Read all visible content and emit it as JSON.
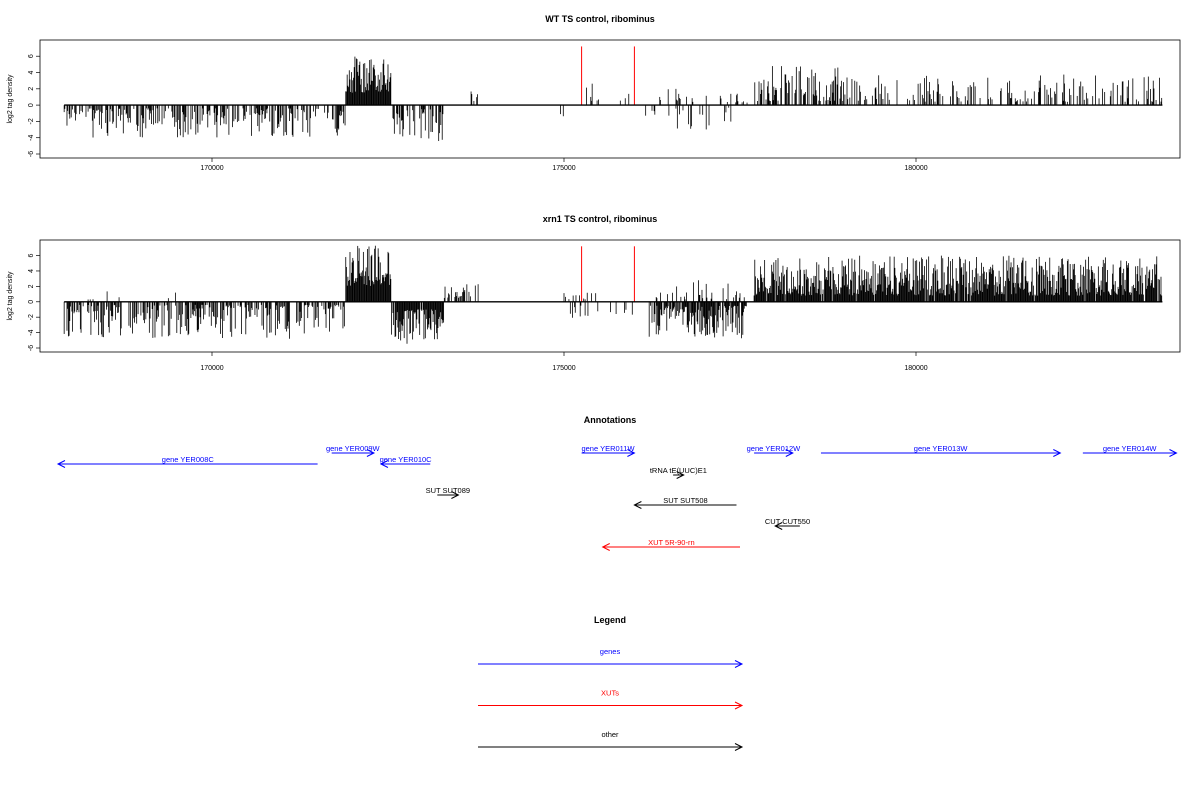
{
  "chart_data": [
    {
      "type": "bar",
      "title": "WT TS control, ribominus",
      "ylabel": "log2 tag density",
      "xlabel": "",
      "xlim": [
        167600,
        183700
      ],
      "ylim": [
        -6,
        7.5
      ],
      "yticks": [
        -6,
        -4,
        -2,
        0,
        2,
        4,
        6
      ],
      "xticks": [
        170000,
        175000,
        180000
      ],
      "series": [
        {
          "color": "#000000",
          "segments": [
            {
              "x0": 167900,
              "x1": 171900,
              "dir": -1,
              "min": 0.4,
              "max": 4.0,
              "density": 0.55
            },
            {
              "x0": 171900,
              "x1": 172550,
              "dir": 1,
              "min": 1.5,
              "max": 6.2,
              "density": 1.0
            },
            {
              "x0": 172550,
              "x1": 173300,
              "dir": -1,
              "min": 0.5,
              "max": 4.5,
              "density": 0.5
            },
            {
              "x0": 173600,
              "x1": 173800,
              "dir": 1,
              "min": 0.5,
              "max": 4.0,
              "density": 0.2
            },
            {
              "x0": 174900,
              "x1": 175000,
              "dir": -1,
              "min": 1.0,
              "max": 1.5,
              "density": 0.2
            },
            {
              "x0": 175300,
              "x1": 175500,
              "dir": 1,
              "min": 0.5,
              "max": 3.0,
              "density": 0.3
            },
            {
              "x0": 175800,
              "x1": 175950,
              "dir": 1,
              "min": 0.5,
              "max": 1.5,
              "density": 0.3
            },
            {
              "x0": 176100,
              "x1": 176300,
              "dir": -1,
              "min": 0.5,
              "max": 2.0,
              "density": 0.2
            },
            {
              "x0": 176300,
              "x1": 177700,
              "dir": 1,
              "min": 0.3,
              "max": 2.0,
              "density": 0.15
            },
            {
              "x0": 176400,
              "x1": 177400,
              "dir": -1,
              "min": 0.3,
              "max": 3.0,
              "density": 0.15
            },
            {
              "x0": 177700,
              "x1": 178900,
              "dir": 1,
              "min": 0.5,
              "max": 4.8,
              "density": 0.55
            },
            {
              "x0": 178900,
              "x1": 183500,
              "dir": 1,
              "min": 0.4,
              "max": 3.8,
              "density": 0.35
            }
          ],
          "seed": 11
        },
        {
          "color": "#ff0000",
          "spikes": [
            {
              "x": 175250,
              "y": 7.2
            },
            {
              "x": 176000,
              "y": 7.2
            }
          ]
        }
      ]
    },
    {
      "type": "bar",
      "title": "xrn1 TS control, ribominus",
      "ylabel": "log2 tag density",
      "xlabel": "",
      "xlim": [
        167600,
        183700
      ],
      "ylim": [
        -6,
        7.5
      ],
      "yticks": [
        -6,
        -4,
        -2,
        0,
        2,
        4,
        6
      ],
      "xticks": [
        170000,
        175000,
        180000
      ],
      "series": [
        {
          "color": "#000000",
          "segments": [
            {
              "x0": 167900,
              "x1": 171900,
              "dir": -1,
              "min": 0.4,
              "max": 4.8,
              "density": 0.6
            },
            {
              "x0": 168000,
              "x1": 169500,
              "dir": 1,
              "min": 0.3,
              "max": 1.5,
              "density": 0.05
            },
            {
              "x0": 171900,
              "x1": 172550,
              "dir": 1,
              "min": 2.0,
              "max": 7.4,
              "density": 1.0
            },
            {
              "x0": 172550,
              "x1": 173300,
              "dir": -1,
              "min": 1.0,
              "max": 5.5,
              "density": 0.9
            },
            {
              "x0": 173300,
              "x1": 173800,
              "dir": 1,
              "min": 0.5,
              "max": 2.5,
              "density": 0.4
            },
            {
              "x0": 175000,
              "x1": 175500,
              "dir": 1,
              "min": 0.3,
              "max": 1.5,
              "density": 0.2
            },
            {
              "x0": 175000,
              "x1": 176000,
              "dir": -1,
              "min": 0.5,
              "max": 2.5,
              "density": 0.15
            },
            {
              "x0": 176200,
              "x1": 177600,
              "dir": -1,
              "min": 0.5,
              "max": 4.8,
              "density": 0.8
            },
            {
              "x0": 176300,
              "x1": 177600,
              "dir": 1,
              "min": 0.3,
              "max": 2.8,
              "density": 0.25
            },
            {
              "x0": 177700,
              "x1": 183500,
              "dir": 1,
              "min": 0.8,
              "max": 6.0,
              "density": 0.95
            }
          ],
          "seed": 29
        },
        {
          "color": "#ff0000",
          "spikes": [
            {
              "x": 175250,
              "y": 7.2
            },
            {
              "x": 176000,
              "y": 7.2
            }
          ]
        }
      ]
    }
  ],
  "annotations": {
    "title": "Annotations",
    "items": [
      {
        "label": "gene YER008C",
        "color": "#0000ff",
        "row": 2,
        "x0": 167500,
        "x1": 171500,
        "dir": "left"
      },
      {
        "label": "gene YER009W",
        "color": "#0000ff",
        "row": 1,
        "x0": 171700,
        "x1": 172300,
        "dir": "right"
      },
      {
        "label": "gene YER010C",
        "color": "#0000ff",
        "row": 2,
        "x0": 172400,
        "x1": 173100,
        "dir": "left"
      },
      {
        "label": "SUT SUT089",
        "color": "#000000",
        "row": 4,
        "x0": 173200,
        "x1": 173500,
        "dir": "right"
      },
      {
        "label": "gene YER011W",
        "color": "#0000ff",
        "row": 1,
        "x0": 175250,
        "x1": 176000,
        "dir": "right"
      },
      {
        "label": "tRNA tE(UUC)E1",
        "color": "#000000",
        "row": 3,
        "x0": 176550,
        "x1": 176700,
        "dir": "right"
      },
      {
        "label": "SUT SUT508",
        "color": "#000000",
        "row": 5,
        "x0": 176000,
        "x1": 177450,
        "dir": "left"
      },
      {
        "label": "gene YER012W",
        "color": "#0000ff",
        "row": 1,
        "x0": 177700,
        "x1": 178250,
        "dir": "right"
      },
      {
        "label": "CUT CUT550",
        "color": "#000000",
        "row": 6,
        "x0": 178000,
        "x1": 178350,
        "dir": "left"
      },
      {
        "label": "XUT 5R-90-rn",
        "color": "#ff0000",
        "row": 7,
        "x0": 175550,
        "x1": 177500,
        "dir": "left"
      },
      {
        "label": "gene YER013W",
        "color": "#0000ff",
        "row": 1,
        "x0": 178650,
        "x1": 182050,
        "dir": "right"
      },
      {
        "label": "gene YER014W",
        "color": "#0000ff",
        "row": 1,
        "x0": 182370,
        "x1": 183700,
        "dir": "right"
      }
    ]
  },
  "legend": {
    "title": "Legend",
    "items": [
      {
        "label": "genes",
        "color": "#0000ff"
      },
      {
        "label": "XUTs",
        "color": "#ff0000"
      },
      {
        "label": "other",
        "color": "#000000"
      }
    ]
  }
}
